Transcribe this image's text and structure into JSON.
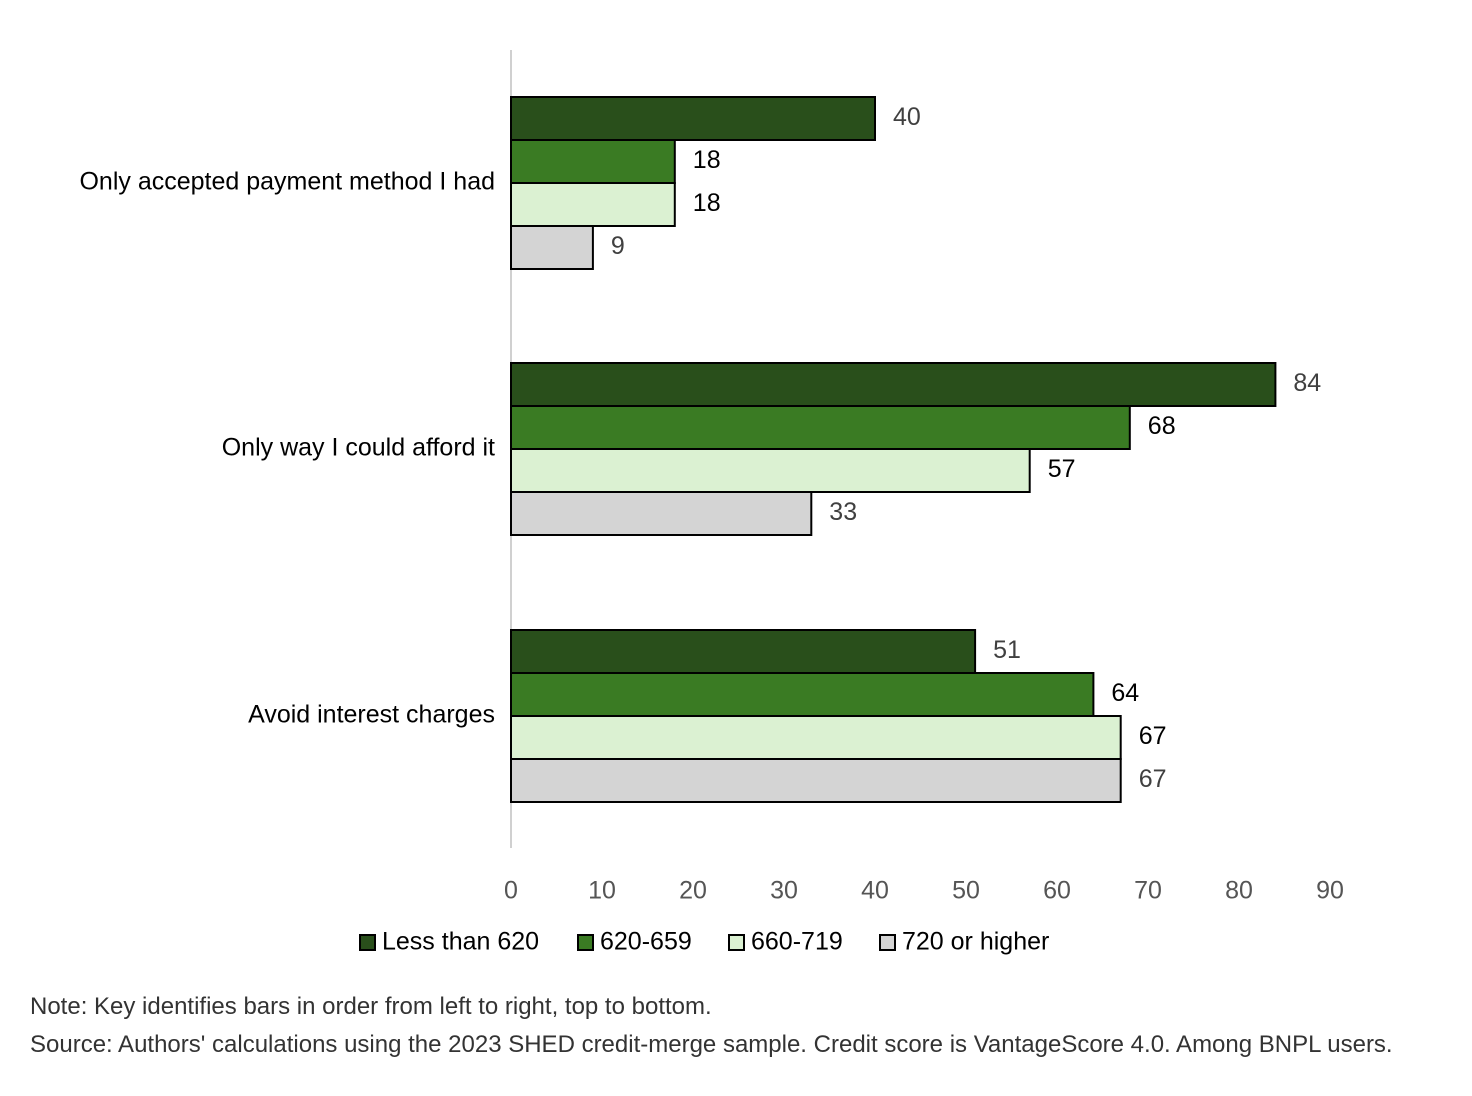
{
  "chart_data": {
    "type": "bar",
    "orientation": "horizontal",
    "categories": [
      "Only accepted payment method I had",
      "Only way I could afford it",
      "Avoid interest charges"
    ],
    "series": [
      {
        "name": "Less than 620",
        "color": "#294f1b",
        "values": [
          40,
          84,
          51
        ]
      },
      {
        "name": "620-659",
        "color": "#3a7b23",
        "values": [
          18,
          68,
          64
        ]
      },
      {
        "name": "660-719",
        "color": "#dbf1d2",
        "values": [
          18,
          57,
          67
        ]
      },
      {
        "name": "720 or higher",
        "color": "#d4d4d4",
        "values": [
          9,
          33,
          67
        ]
      }
    ],
    "xlim": [
      0,
      90
    ],
    "x_ticks": [
      0,
      10,
      20,
      30,
      40,
      50,
      60,
      70,
      80,
      90
    ],
    "grid": false,
    "data_labels": true,
    "legend_position": "bottom"
  },
  "footnotes": {
    "note": "Note: Key identifies bars in order from left to right, top to bottom.",
    "source": "Source: Authors' calculations using the 2023 SHED credit-merge sample. Credit score is VantageScore 4.0. Among BNPL users."
  }
}
